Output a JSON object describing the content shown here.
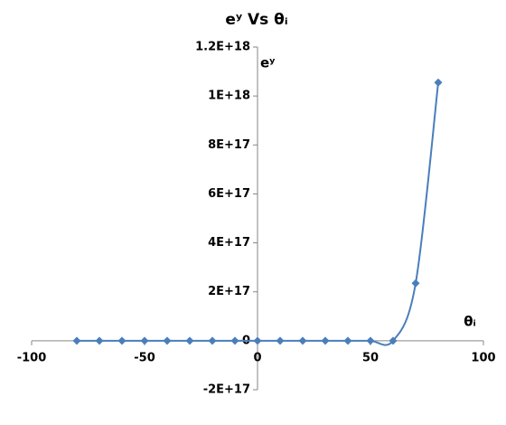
{
  "chart_data": {
    "type": "scatter",
    "title": "eʸ Vs θᵢ",
    "x_label": "θᵢ",
    "y_label": "eʸ",
    "x": [
      -80,
      -70,
      -60,
      -50,
      -40,
      -30,
      -20,
      -10,
      0,
      10,
      20,
      30,
      40,
      50,
      60,
      70,
      80
    ],
    "series": [
      {
        "name": "eʸ",
        "color": "#4a7ebb",
        "values": [
          0,
          0,
          0,
          0,
          0,
          0,
          0,
          0,
          0,
          0,
          0,
          0,
          0,
          0,
          0,
          235000000000000000,
          1055000000000000000
        ]
      }
    ],
    "xlim": [
      -100,
      100
    ],
    "xticks": [
      -100,
      -50,
      0,
      50,
      100
    ],
    "ylim": [
      -200000000000000000,
      1200000000000000000
    ],
    "yticks": [
      {
        "value": -200000000000000000,
        "label": "-2E+17"
      },
      0,
      {
        "value": 200000000000000000,
        "label": "2E+17"
      },
      {
        "value": 400000000000000000,
        "label": "4E+17"
      },
      {
        "value": 600000000000000000,
        "label": "6E+17"
      },
      {
        "value": 800000000000000000,
        "label": "8E+17"
      },
      {
        "value": 1000000000000000000,
        "label": "1E+18"
      },
      {
        "value": 1200000000000000000,
        "label": "1.2E+18"
      }
    ],
    "smooth": true,
    "legend": false,
    "grid": false
  }
}
